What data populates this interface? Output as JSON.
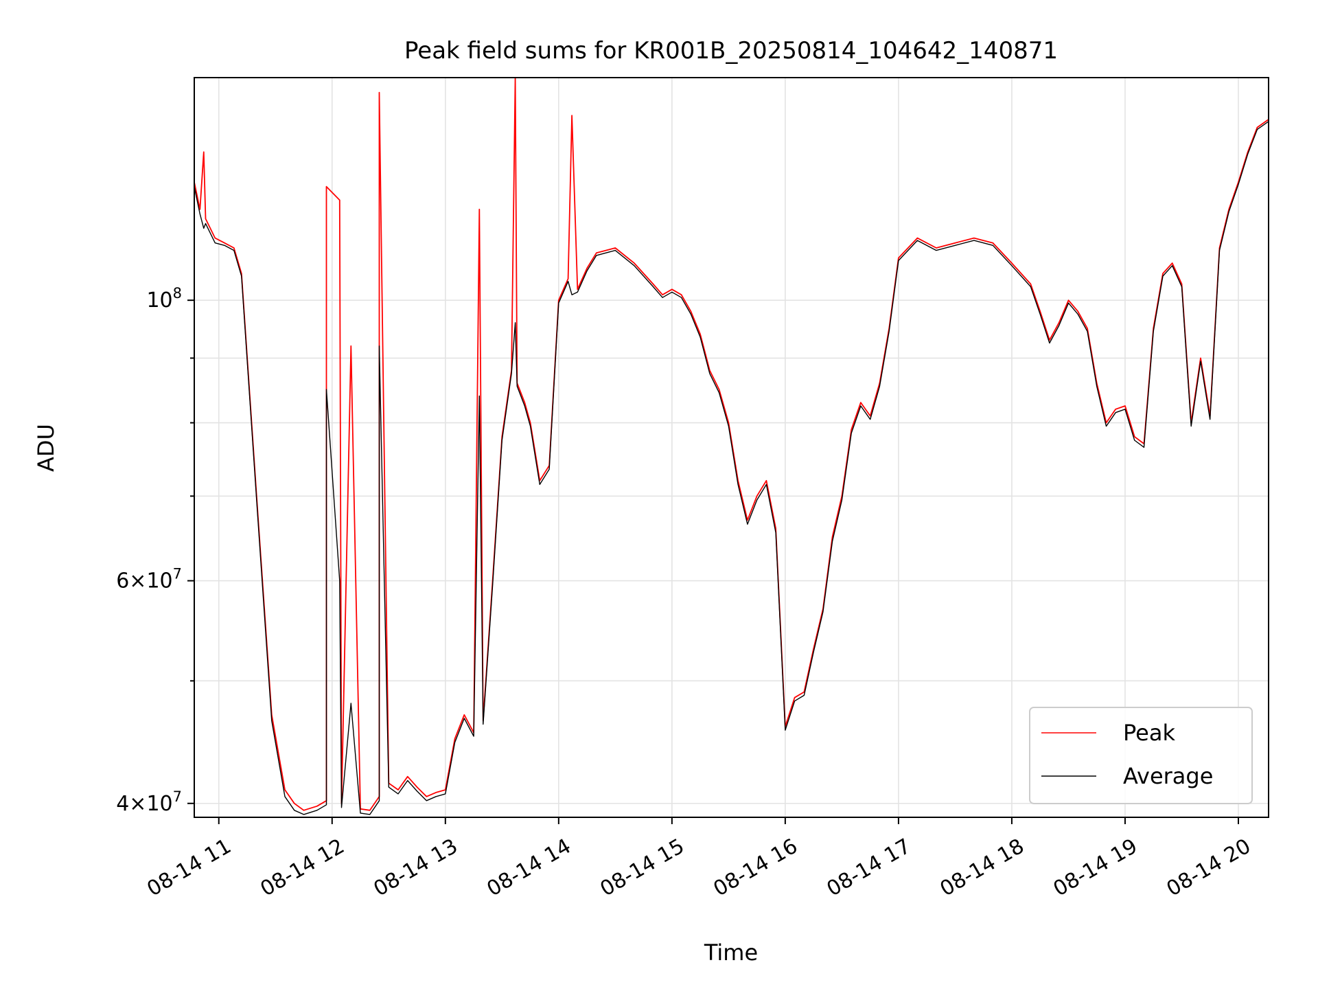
{
  "chart_data": {
    "type": "line",
    "title": "Peak field sums for KR001B_20250814_104642_140871",
    "xlabel": "Time",
    "ylabel": "ADU",
    "yscale": "log",
    "grid": true,
    "legend_position": "lower right",
    "xlim": [
      "2025-08-14 10:47",
      "2025-08-14 20:16"
    ],
    "ylim": [
      39000000,
      150000000
    ],
    "x_ticks": [
      "08-14 11",
      "08-14 12",
      "08-14 13",
      "08-14 14",
      "08-14 15",
      "08-14 16",
      "08-14 17",
      "08-14 18",
      "08-14 19",
      "08-14 20"
    ],
    "y_ticks": [
      {
        "value": 40000000,
        "base": "4",
        "exp": "7",
        "labeled": true
      },
      {
        "value": 50000000,
        "labeled": false
      },
      {
        "value": 60000000,
        "base": "6",
        "exp": "7",
        "labeled": true
      },
      {
        "value": 70000000,
        "labeled": false
      },
      {
        "value": 80000000,
        "labeled": false
      },
      {
        "value": 90000000,
        "labeled": false
      },
      {
        "value": 100000000,
        "base": "10",
        "exp": "8",
        "labeled": true
      }
    ],
    "x": [
      "2025-08-14 10:47",
      "2025-08-14 10:50",
      "2025-08-14 10:53",
      "2025-08-14 10:58",
      "2025-08-14 11:03",
      "2025-08-14 11:08",
      "2025-08-14 11:12",
      "2025-08-14 11:20",
      "2025-08-14 11:28",
      "2025-08-14 11:35",
      "2025-08-14 11:40",
      "2025-08-14 11:45",
      "2025-08-14 11:52",
      "2025-08-14 11:57",
      "2025-08-14 12:05",
      "2025-08-14 12:15",
      "2025-08-14 12:20",
      "2025-08-14 12:25",
      "2025-08-14 12:30",
      "2025-08-14 12:35",
      "2025-08-14 12:40",
      "2025-08-14 12:45",
      "2025-08-14 12:50",
      "2025-08-14 12:55",
      "2025-08-14 13:00",
      "2025-08-14 13:05",
      "2025-08-14 13:10",
      "2025-08-14 13:15",
      "2025-08-14 13:20",
      "2025-08-14 13:25",
      "2025-08-14 13:30",
      "2025-08-14 13:35",
      "2025-08-14 13:38",
      "2025-08-14 13:42",
      "2025-08-14 13:45",
      "2025-08-14 13:50",
      "2025-08-14 13:55",
      "2025-08-14 14:00",
      "2025-08-14 14:05",
      "2025-08-14 14:10",
      "2025-08-14 14:15",
      "2025-08-14 14:20",
      "2025-08-14 14:30",
      "2025-08-14 14:40",
      "2025-08-14 14:50",
      "2025-08-14 14:55",
      "2025-08-14 15:00",
      "2025-08-14 15:05",
      "2025-08-14 15:10",
      "2025-08-14 15:15",
      "2025-08-14 15:20",
      "2025-08-14 15:25",
      "2025-08-14 15:30",
      "2025-08-14 15:35",
      "2025-08-14 15:40",
      "2025-08-14 15:45",
      "2025-08-14 15:50",
      "2025-08-14 15:55",
      "2025-08-14 16:00",
      "2025-08-14 16:05",
      "2025-08-14 16:10",
      "2025-08-14 16:15",
      "2025-08-14 16:20",
      "2025-08-14 16:25",
      "2025-08-14 16:30",
      "2025-08-14 16:35",
      "2025-08-14 16:40",
      "2025-08-14 16:45",
      "2025-08-14 16:50",
      "2025-08-14 16:55",
      "2025-08-14 17:00",
      "2025-08-14 17:10",
      "2025-08-14 17:20",
      "2025-08-14 17:30",
      "2025-08-14 17:40",
      "2025-08-14 17:50",
      "2025-08-14 18:00",
      "2025-08-14 18:10",
      "2025-08-14 18:15",
      "2025-08-14 18:20",
      "2025-08-14 18:25",
      "2025-08-14 18:30",
      "2025-08-14 18:35",
      "2025-08-14 18:40",
      "2025-08-14 18:45",
      "2025-08-14 18:50",
      "2025-08-14 18:55",
      "2025-08-14 19:00",
      "2025-08-14 19:05",
      "2025-08-14 19:10",
      "2025-08-14 19:15",
      "2025-08-14 19:20",
      "2025-08-14 19:25",
      "2025-08-14 19:30",
      "2025-08-14 19:35",
      "2025-08-14 19:40",
      "2025-08-14 19:45",
      "2025-08-14 19:50",
      "2025-08-14 19:55",
      "2025-08-14 20:00",
      "2025-08-14 20:05",
      "2025-08-14 20:10",
      "2025-08-14 20:16"
    ],
    "series": [
      {
        "name": "Peak",
        "color": "#ff0000",
        "values": [
          124000000,
          118000000,
          116000000,
          112000000,
          111000000,
          110000000,
          105000000,
          70000000,
          47000000,
          41000000,
          40000000,
          39500000,
          39800000,
          40200000,
          40000000,
          39600000,
          39500000,
          40500000,
          41500000,
          41000000,
          42000000,
          41200000,
          40500000,
          40800000,
          41000000,
          45000000,
          47000000,
          45500000,
          46500000,
          60000000,
          78000000,
          88000000,
          86000000,
          83000000,
          80000000,
          72000000,
          74000000,
          100000000,
          104000000,
          102000000,
          106000000,
          109000000,
          110000000,
          107000000,
          103000000,
          101000000,
          102000000,
          101000000,
          98000000,
          94000000,
          88000000,
          85000000,
          80000000,
          72000000,
          67000000,
          70000000,
          72000000,
          66000000,
          46000000,
          48500000,
          49000000,
          53000000,
          57000000,
          65000000,
          70000000,
          79000000,
          83000000,
          81000000,
          86000000,
          95000000,
          108000000,
          112000000,
          110000000,
          111000000,
          112000000,
          111000000,
          107000000,
          103000000,
          98000000,
          93000000,
          96000000,
          100000000,
          98000000,
          95000000,
          86000000,
          80000000,
          82000000,
          82500000,
          78000000,
          77000000,
          95000000,
          105000000,
          107000000,
          103000000,
          80000000,
          90000000,
          81000000,
          110000000,
          118000000,
          124000000,
          131000000,
          137000000,
          139000000
        ]
      },
      {
        "name": "Average",
        "color": "#000000",
        "values": [
          123000000,
          117000000,
          115000000,
          111000000,
          110500000,
          109500000,
          104500000,
          69500000,
          46500000,
          40500000,
          39500000,
          39200000,
          39500000,
          39900000,
          39700000,
          39300000,
          39200000,
          40200000,
          41200000,
          40700000,
          41700000,
          40900000,
          40200000,
          40500000,
          40700000,
          44700000,
          46700000,
          45200000,
          46200000,
          59500000,
          77500000,
          87500000,
          85500000,
          82500000,
          79500000,
          71500000,
          73500000,
          99500000,
          103500000,
          101500000,
          105500000,
          108500000,
          109500000,
          106500000,
          102500000,
          100500000,
          101500000,
          100500000,
          97500000,
          93500000,
          87500000,
          84500000,
          79500000,
          71500000,
          66500000,
          69500000,
          71500000,
          65500000,
          45700000,
          48200000,
          48700000,
          52700000,
          56700000,
          64500000,
          69500000,
          78500000,
          82500000,
          80500000,
          85500000,
          94500000,
          107500000,
          111500000,
          109500000,
          110500000,
          111500000,
          110500000,
          106500000,
          102500000,
          97500000,
          92500000,
          95500000,
          99500000,
          97500000,
          94500000,
          85500000,
          79500000,
          81500000,
          82000000,
          77500000,
          76500000,
          94500000,
          104500000,
          106500000,
          102500000,
          79500000,
          89500000,
          80500000,
          109500000,
          117500000,
          123500000,
          130500000,
          136500000,
          138500000
        ]
      }
    ],
    "spikes": [
      {
        "x": "2025-08-14 10:52",
        "peak": 131000000,
        "average": 114000000
      },
      {
        "x": "2025-08-14 11:57",
        "peak": 123000000,
        "average": 85000000
      },
      {
        "x": "2025-08-14 12:04",
        "peak": 120000000,
        "average": 60000000
      },
      {
        "x": "2025-08-14 12:10",
        "peak": 92000000,
        "average": 48000000
      },
      {
        "x": "2025-08-14 12:25",
        "peak": 146000000,
        "average": 92000000
      },
      {
        "x": "2025-08-14 13:18",
        "peak": 118000000,
        "average": 84000000
      },
      {
        "x": "2025-08-14 13:37",
        "peak": 150000000,
        "average": 96000000
      },
      {
        "x": "2025-08-14 14:07",
        "peak": 140000000,
        "average": 101000000
      }
    ]
  }
}
